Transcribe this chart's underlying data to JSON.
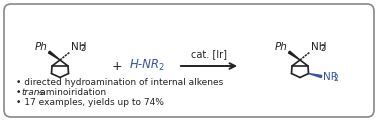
{
  "bg_color": "#ffffff",
  "border_color": "#888888",
  "border_lw": 1.2,
  "blue_color": "#3355aa",
  "black_color": "#222222",
  "cat_text": "cat. [Ir]",
  "cat_fontsize": 7.0,
  "bullet_fontsize": 6.5,
  "bullet1": "• directed hydroamination of internal alkenes",
  "bullet2_italic": "trans",
  "bullet2_rest": "-aminoiridation",
  "bullet3": "• 17 examples, yields up to 74%"
}
